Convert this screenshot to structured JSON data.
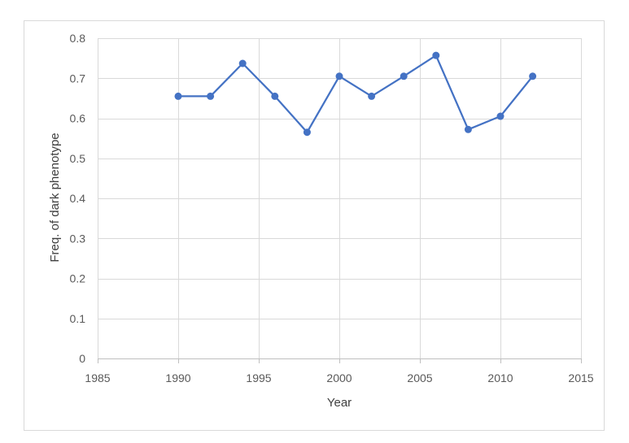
{
  "chart_data": {
    "type": "line",
    "title": "",
    "xlabel": "Year",
    "ylabel": "Freq. of dark phenotype",
    "xlim": [
      1985,
      2015
    ],
    "ylim": [
      0,
      0.8
    ],
    "x_ticks": [
      1985,
      1990,
      1995,
      2000,
      2005,
      2010,
      2015
    ],
    "y_ticks": [
      0,
      0.1,
      0.2,
      0.3,
      0.4,
      0.5,
      0.6,
      0.7,
      0.8
    ],
    "grid": true,
    "legend": "none",
    "series": [
      {
        "color": "#4472c4",
        "x": [
          1990,
          1992,
          1994,
          1996,
          1998,
          2000,
          2002,
          2004,
          2006,
          2008,
          2010,
          2012
        ],
        "y": [
          0.655,
          0.655,
          0.737,
          0.655,
          0.565,
          0.705,
          0.655,
          0.705,
          0.757,
          0.572,
          0.605,
          0.705
        ]
      }
    ]
  }
}
